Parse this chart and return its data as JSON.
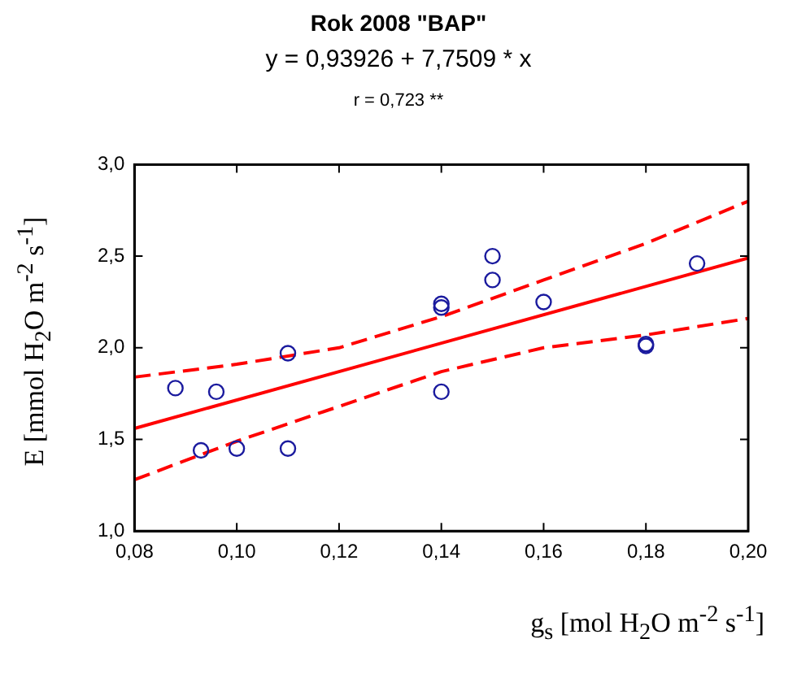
{
  "chart_data": {
    "type": "scatter",
    "title": "Rok 2008 \"BAP\"",
    "subtitle": "y = 0,93926 + 7,7509 * x",
    "annotations": [
      "r = 0,723 **"
    ],
    "xlabel": "g$_{s}$ [mol H$_{2}$O m$^{-2}$ s$^{-1}$]",
    "ylabel": "E [mmol H$_{2}$O m$^{-2}$ s$^{-1}$]",
    "xlim": [
      0.08,
      0.2
    ],
    "ylim": [
      1.0,
      3.0
    ],
    "xticks": [
      {
        "value": 0.08,
        "label": "0,08"
      },
      {
        "value": 0.1,
        "label": "0,10"
      },
      {
        "value": 0.12,
        "label": "0,12"
      },
      {
        "value": 0.14,
        "label": "0,14"
      },
      {
        "value": 0.16,
        "label": "0,16"
      },
      {
        "value": 0.18,
        "label": "0,18"
      },
      {
        "value": 0.2,
        "label": "0,20"
      }
    ],
    "yticks": [
      {
        "value": 1.0,
        "label": "1,0"
      },
      {
        "value": 1.5,
        "label": "1,5"
      },
      {
        "value": 2.0,
        "label": "2,0"
      },
      {
        "value": 2.5,
        "label": "2,5"
      },
      {
        "value": 3.0,
        "label": "3,0"
      }
    ],
    "grid": false,
    "legend": false,
    "marker": "circle",
    "series": [
      {
        "color": "#1a1a9e",
        "x": [
          0.088,
          0.093,
          0.096,
          0.1,
          0.11,
          0.11,
          0.14,
          0.14,
          0.14,
          0.15,
          0.15,
          0.16,
          0.18,
          0.18,
          0.19
        ],
        "values": [
          1.78,
          1.44,
          1.76,
          1.45,
          1.97,
          1.45,
          2.24,
          2.22,
          1.76,
          2.5,
          2.37,
          2.25,
          2.02,
          2.01,
          2.46
        ]
      },
      {
        "type": "line",
        "color": "#ff0000",
        "marker": "none",
        "line_style": "solid",
        "x": [
          0.08,
          0.2
        ],
        "values": [
          1.56,
          2.49
        ]
      },
      {
        "type": "line",
        "color": "#ff0000",
        "marker": "none",
        "line_style": "dashed",
        "x": [
          0.08,
          0.1,
          0.12,
          0.14,
          0.16,
          0.18,
          0.2
        ],
        "values": [
          1.84,
          1.91,
          2.0,
          2.17,
          2.37,
          2.57,
          2.8
        ]
      },
      {
        "type": "line",
        "color": "#ff0000",
        "marker": "none",
        "line_style": "dashed",
        "x": [
          0.08,
          0.1,
          0.12,
          0.14,
          0.16,
          0.18,
          0.2
        ],
        "values": [
          1.28,
          1.49,
          1.68,
          1.87,
          2.0,
          2.07,
          2.16
        ]
      }
    ]
  }
}
